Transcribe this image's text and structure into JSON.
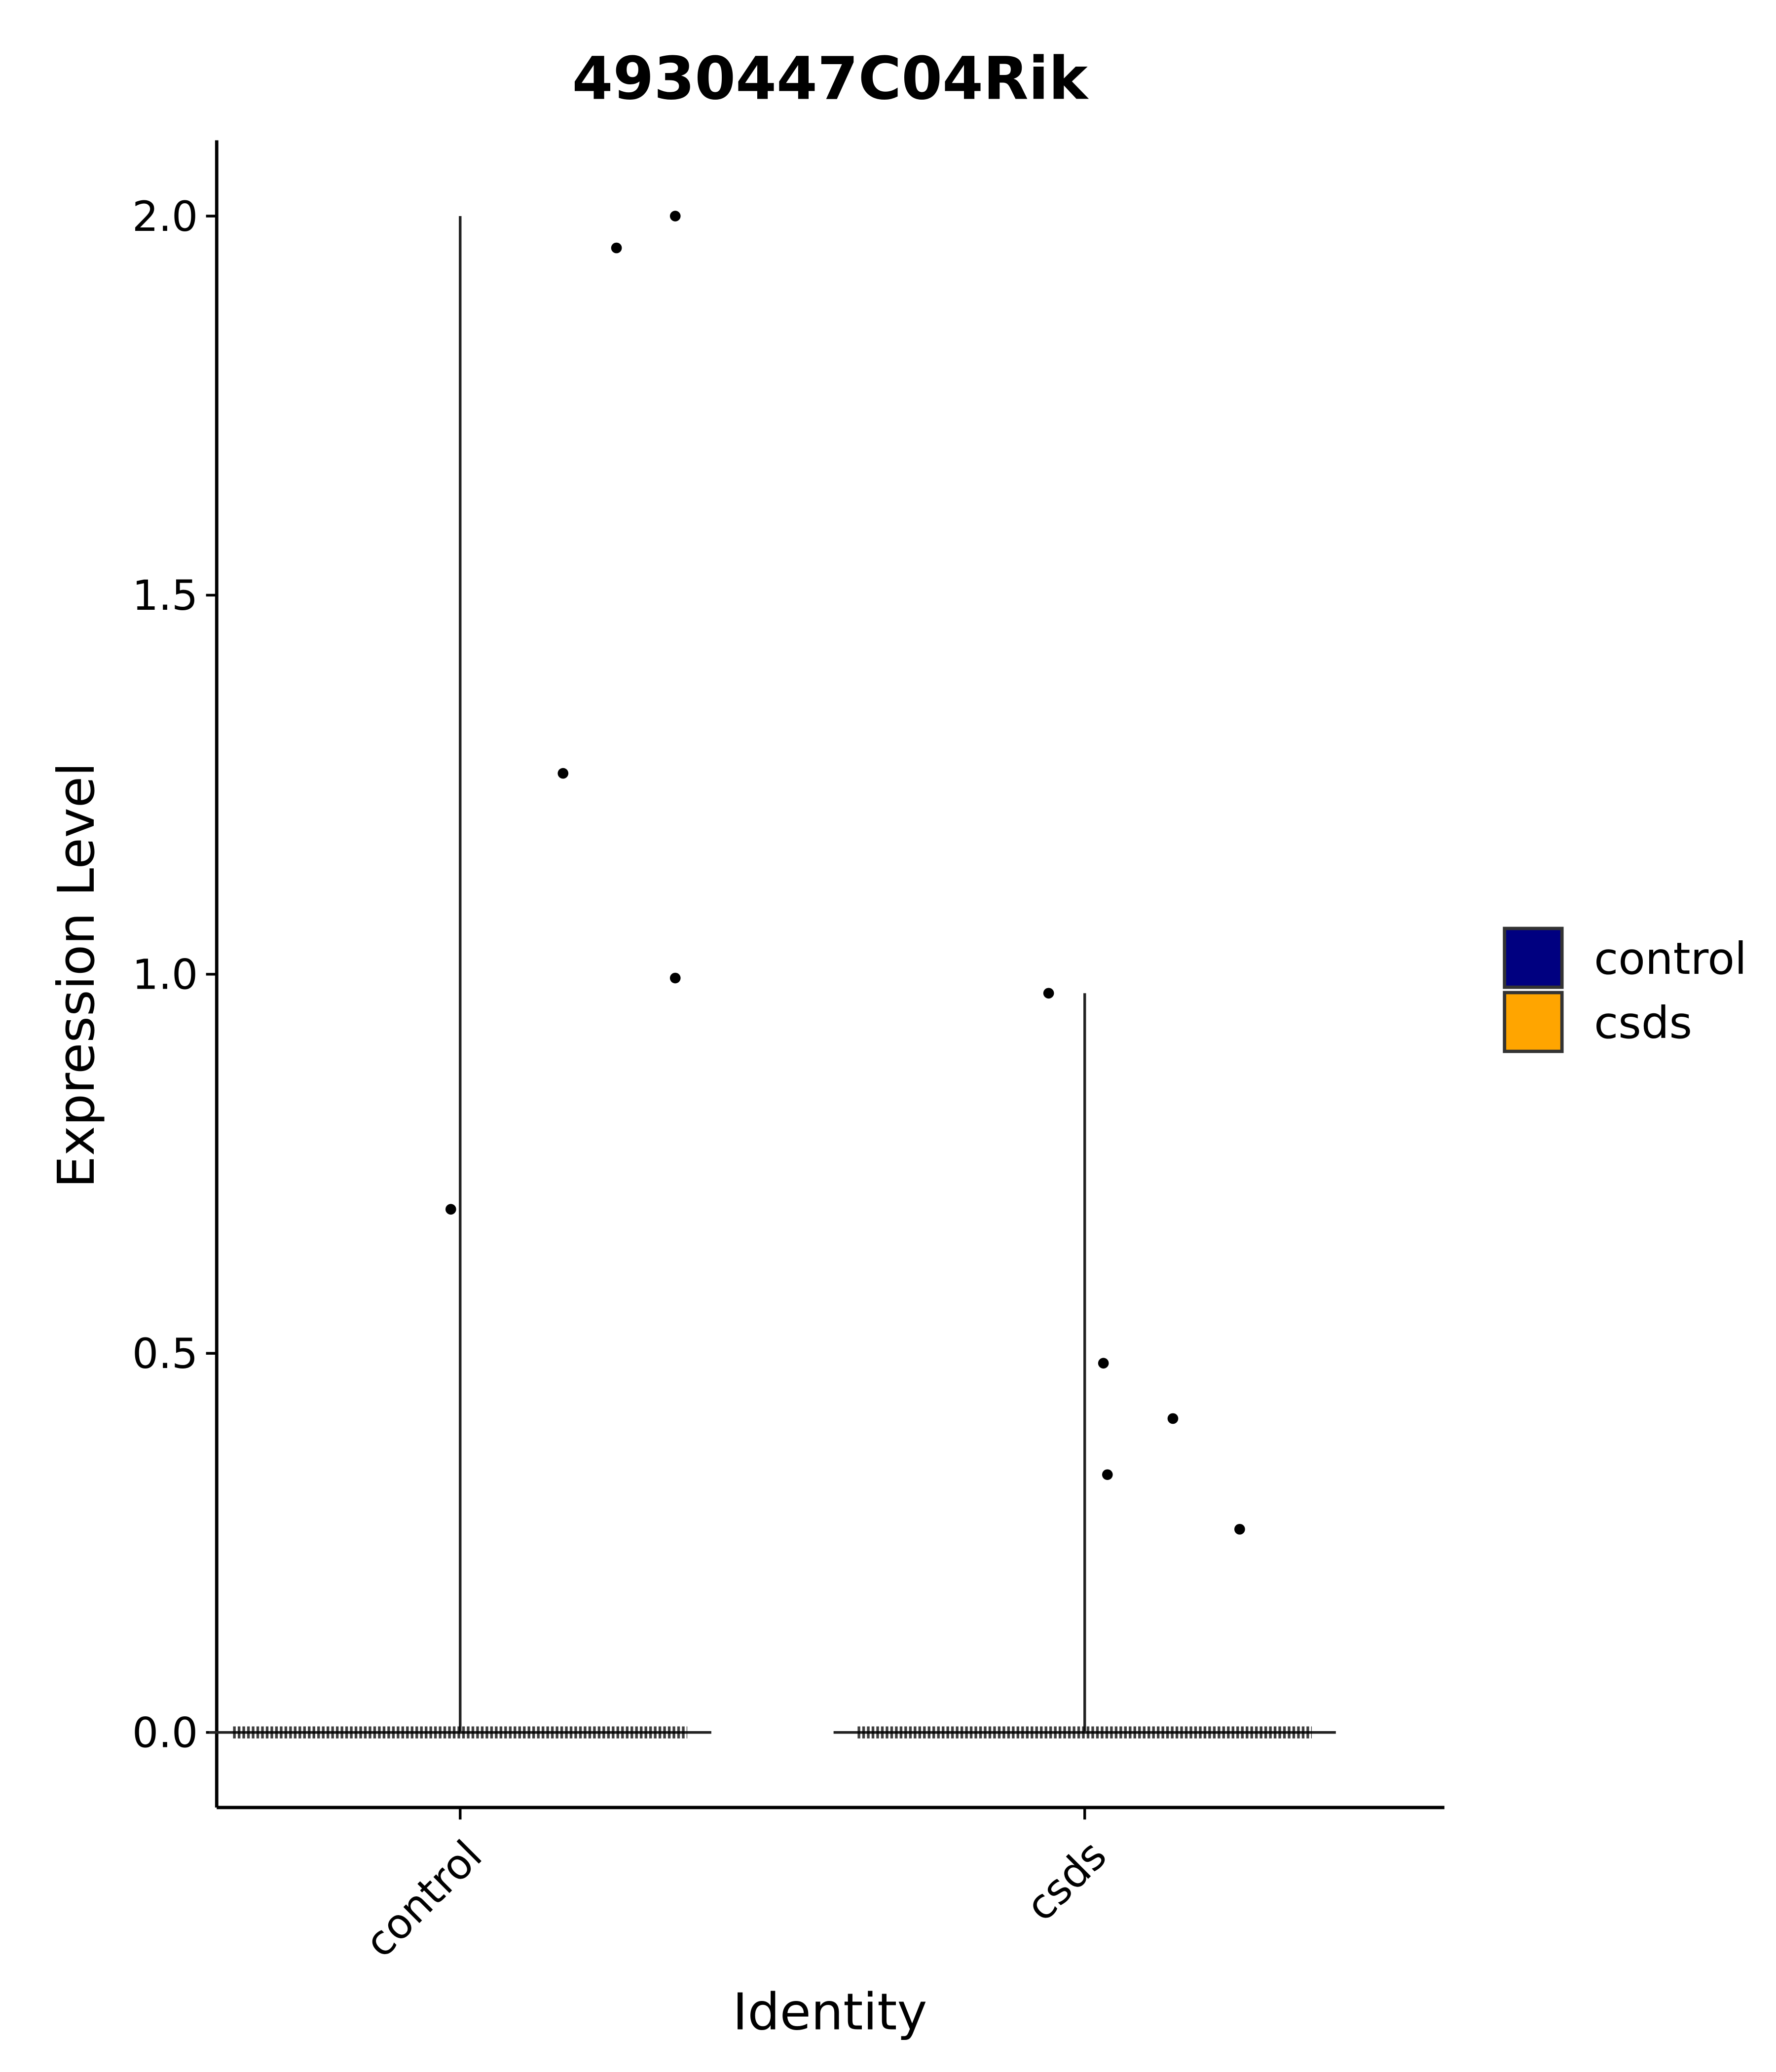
{
  "chart_data": {
    "type": "violin",
    "title": "4930447C04Rik",
    "x_label": "Identity",
    "y_label": "Expression Level",
    "categories": [
      "control",
      "csds"
    ],
    "series": [
      {
        "name": "control",
        "color": "#000080",
        "values": [
          2.0,
          1.958,
          1.265,
          0.995,
          0.69,
          0
        ]
      },
      {
        "name": "csds",
        "color": "#FFA500",
        "values": [
          0.975,
          0.487,
          0.414,
          0.34,
          0.268,
          0
        ]
      }
    ],
    "ylim": [
      -0.099,
      2.1
    ],
    "yticks": [
      {
        "value": 0,
        "label": "0.0"
      },
      0.5,
      {
        "value": 1,
        "label": "1.0"
      },
      1.5,
      {
        "value": 2,
        "label": "2.0"
      }
    ],
    "legend": "right",
    "grid": false
  }
}
